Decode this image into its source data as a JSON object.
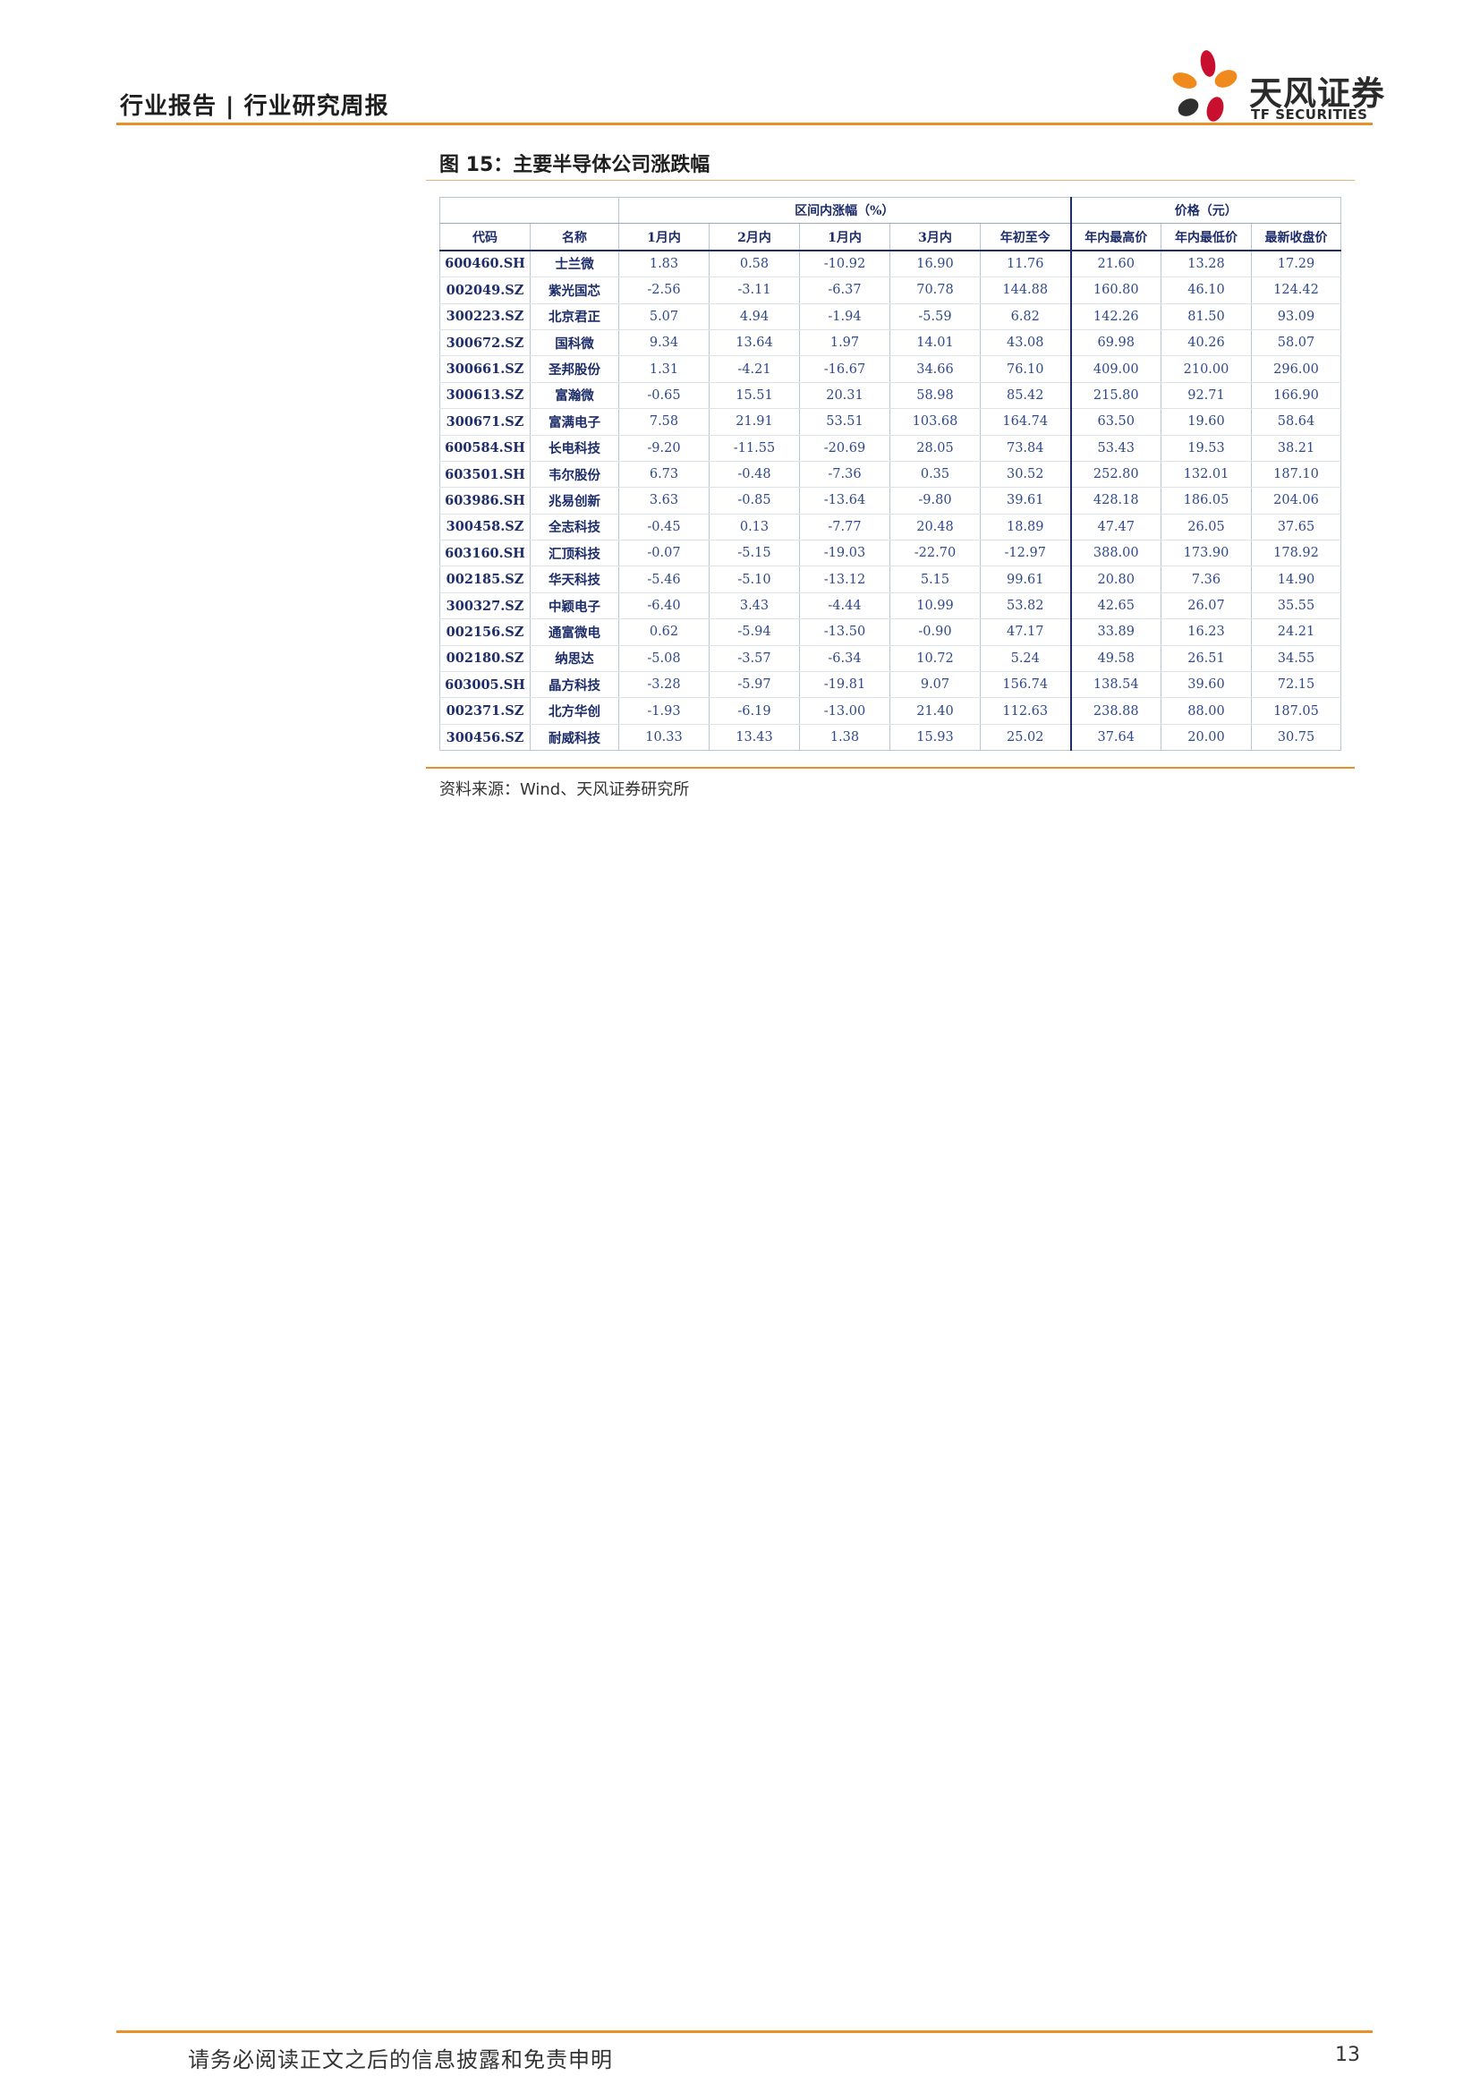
{
  "header": {
    "title": "行业报告 | 行业研究周报",
    "logo_name": "天风证券",
    "logo_sub": "TF SECURITIES",
    "accent_color": "#e8902a"
  },
  "figure": {
    "title": "图 15：主要半导体公司涨跌幅",
    "source": "资料来源：Wind、天风证券研究所"
  },
  "table": {
    "group_headers": [
      "区间内涨幅（%）",
      "价格（元）"
    ],
    "columns": [
      "代码",
      "名称",
      "1月内",
      "2月内",
      "1月内",
      "3月内",
      "年初至今",
      "年内最高价",
      "年内最低价",
      "最新收盘价"
    ],
    "rows": [
      [
        "600460.SH",
        "士兰微",
        "1.83",
        "0.58",
        "-10.92",
        "16.90",
        "11.76",
        "21.60",
        "13.28",
        "17.29"
      ],
      [
        "002049.SZ",
        "紫光国芯",
        "-2.56",
        "-3.11",
        "-6.37",
        "70.78",
        "144.88",
        "160.80",
        "46.10",
        "124.42"
      ],
      [
        "300223.SZ",
        "北京君正",
        "5.07",
        "4.94",
        "-1.94",
        "-5.59",
        "6.82",
        "142.26",
        "81.50",
        "93.09"
      ],
      [
        "300672.SZ",
        "国科微",
        "9.34",
        "13.64",
        "1.97",
        "14.01",
        "43.08",
        "69.98",
        "40.26",
        "58.07"
      ],
      [
        "300661.SZ",
        "圣邦股份",
        "1.31",
        "-4.21",
        "-16.67",
        "34.66",
        "76.10",
        "409.00",
        "210.00",
        "296.00"
      ],
      [
        "300613.SZ",
        "富瀚微",
        "-0.65",
        "15.51",
        "20.31",
        "58.98",
        "85.42",
        "215.80",
        "92.71",
        "166.90"
      ],
      [
        "300671.SZ",
        "富满电子",
        "7.58",
        "21.91",
        "53.51",
        "103.68",
        "164.74",
        "63.50",
        "19.60",
        "58.64"
      ],
      [
        "600584.SH",
        "长电科技",
        "-9.20",
        "-11.55",
        "-20.69",
        "28.05",
        "73.84",
        "53.43",
        "19.53",
        "38.21"
      ],
      [
        "603501.SH",
        "韦尔股份",
        "6.73",
        "-0.48",
        "-7.36",
        "0.35",
        "30.52",
        "252.80",
        "132.01",
        "187.10"
      ],
      [
        "603986.SH",
        "兆易创新",
        "3.63",
        "-0.85",
        "-13.64",
        "-9.80",
        "39.61",
        "428.18",
        "186.05",
        "204.06"
      ],
      [
        "300458.SZ",
        "全志科技",
        "-0.45",
        "0.13",
        "-7.77",
        "20.48",
        "18.89",
        "47.47",
        "26.05",
        "37.65"
      ],
      [
        "603160.SH",
        "汇顶科技",
        "-0.07",
        "-5.15",
        "-19.03",
        "-22.70",
        "-12.97",
        "388.00",
        "173.90",
        "178.92"
      ],
      [
        "002185.SZ",
        "华天科技",
        "-5.46",
        "-5.10",
        "-13.12",
        "5.15",
        "99.61",
        "20.80",
        "7.36",
        "14.90"
      ],
      [
        "300327.SZ",
        "中颖电子",
        "-6.40",
        "3.43",
        "-4.44",
        "10.99",
        "53.82",
        "42.65",
        "26.07",
        "35.55"
      ],
      [
        "002156.SZ",
        "通富微电",
        "0.62",
        "-5.94",
        "-13.50",
        "-0.90",
        "47.17",
        "33.89",
        "16.23",
        "24.21"
      ],
      [
        "002180.SZ",
        "纳思达",
        "-5.08",
        "-3.57",
        "-6.34",
        "10.72",
        "5.24",
        "49.58",
        "26.51",
        "34.55"
      ],
      [
        "603005.SH",
        "晶方科技",
        "-3.28",
        "-5.97",
        "-19.81",
        "9.07",
        "156.74",
        "138.54",
        "39.60",
        "72.15"
      ],
      [
        "002371.SZ",
        "北方华创",
        "-1.93",
        "-6.19",
        "-13.00",
        "21.40",
        "112.63",
        "238.88",
        "88.00",
        "187.05"
      ],
      [
        "300456.SZ",
        "耐威科技",
        "10.33",
        "13.43",
        "1.38",
        "15.93",
        "25.02",
        "37.64",
        "20.00",
        "30.75"
      ]
    ]
  },
  "footer": {
    "disclaimer": "请务必阅读正文之后的信息披露和免责申明",
    "page_number": "13"
  }
}
